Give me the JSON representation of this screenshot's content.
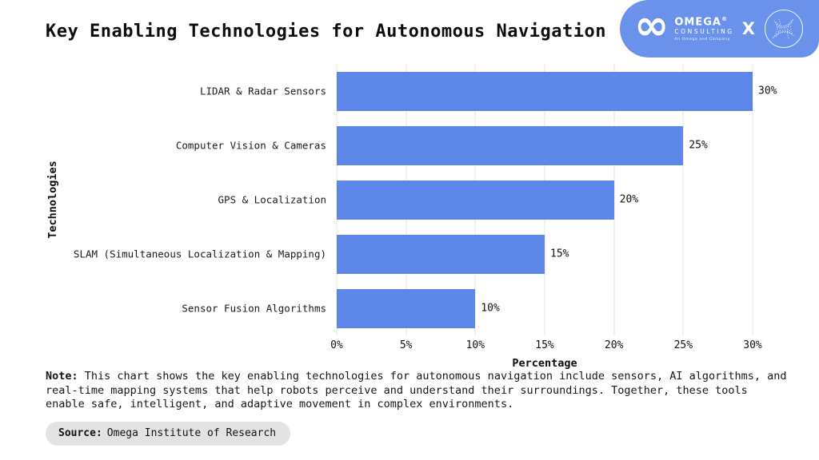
{
  "title": "Key Enabling Technologies for Autonomous Navigation",
  "logo": {
    "brand": "OMEGA",
    "registered_mark": "®",
    "brand_sub": "CONSULTING",
    "tagline": "An Omega and Company",
    "separator": "X",
    "banner_color": "#6a92eb"
  },
  "chart_data": {
    "type": "bar",
    "orientation": "horizontal",
    "title": "Key Enabling Technologies for Autonomous Navigation",
    "categories": [
      "LIDAR & Radar Sensors",
      "Computer Vision & Cameras",
      "GPS & Localization",
      "SLAM (Simultaneous Localization & Mapping)",
      "Sensor Fusion Algorithms"
    ],
    "values": [
      30,
      25,
      20,
      15,
      10
    ],
    "value_labels": [
      "30%",
      "25%",
      "20%",
      "15%",
      "10%"
    ],
    "xlabel": "Percentage",
    "ylabel": "Technologies",
    "xlim": [
      0,
      30
    ],
    "xticks": [
      "0%",
      "5%",
      "10%",
      "15%",
      "20%",
      "25%",
      "30%"
    ],
    "bar_color": "#5c87e9",
    "grid": true,
    "legend": false
  },
  "note": {
    "label": "Note:",
    "text": " This chart shows the key enabling technologies for autonomous navigation include sensors, AI algorithms, and real-time mapping systems that help robots perceive and understand their surroundings. Together, these tools enable safe, intelligent, and adaptive movement in complex environments."
  },
  "source": {
    "label": "Source:",
    "text": "Omega Institute of Research"
  }
}
